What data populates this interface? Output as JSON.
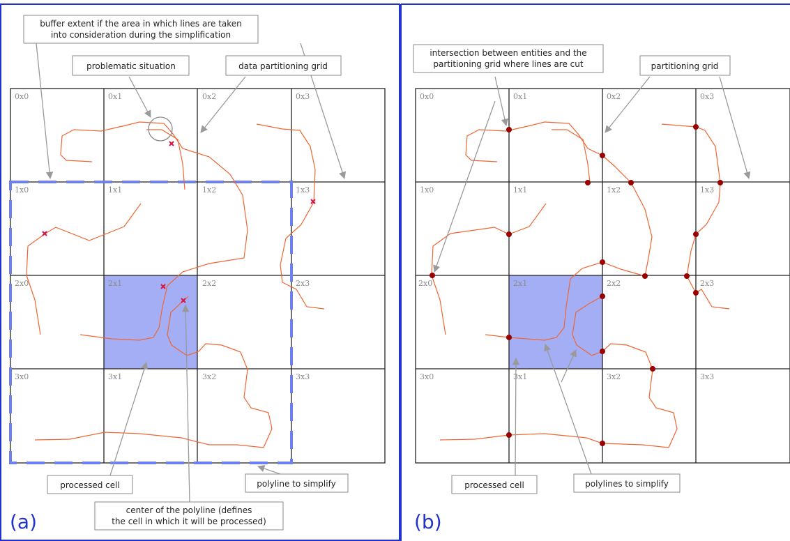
{
  "panels": [
    {
      "id": "a",
      "label": "(a)",
      "cells": [
        [
          "0x0",
          "0x1",
          "0x2",
          "0x3"
        ],
        [
          "1x0",
          "1x1",
          "1x2",
          "1x3"
        ],
        [
          "2x0",
          "2x1",
          "2x2",
          "2x3"
        ],
        [
          "3x0",
          "3x1",
          "3x2",
          "3x3"
        ]
      ],
      "callouts": {
        "buffer_extent": [
          "buffer extent if the area in which lines are taken",
          "into consideration during the simplification"
        ],
        "problematic": "problematic situation",
        "grid": "data partitioning grid",
        "processed": "processed cell",
        "polyline": "polyline to simplify",
        "center": [
          "center of the polyline (defines",
          "the cell in which it will be processed)"
        ]
      }
    },
    {
      "id": "b",
      "label": "(b)",
      "cells": [
        [
          "0x0",
          "0x1",
          "0x2",
          "0x3"
        ],
        [
          "1x0",
          "1x1",
          "1x2",
          "1x3"
        ],
        [
          "2x0",
          "2x1",
          "2x2",
          "2x3"
        ],
        [
          "3x0",
          "3x1",
          "3x2",
          "3x3"
        ]
      ],
      "callouts": {
        "intersection": [
          "intersection between entities and the",
          "partitioning grid where lines are cut"
        ],
        "grid": "partitioning grid",
        "processed": "processed cell",
        "polylines": "polylines to simplify"
      }
    }
  ],
  "colors": {
    "frame": "#2233cc",
    "processed_cell": "#a3aef5",
    "buffer_dash": "#6e7ff0",
    "polyline": "#ee6633",
    "center_marker": "#dd1144",
    "cut_point": "#990000",
    "callout_arrow": "#9a9a9a"
  }
}
